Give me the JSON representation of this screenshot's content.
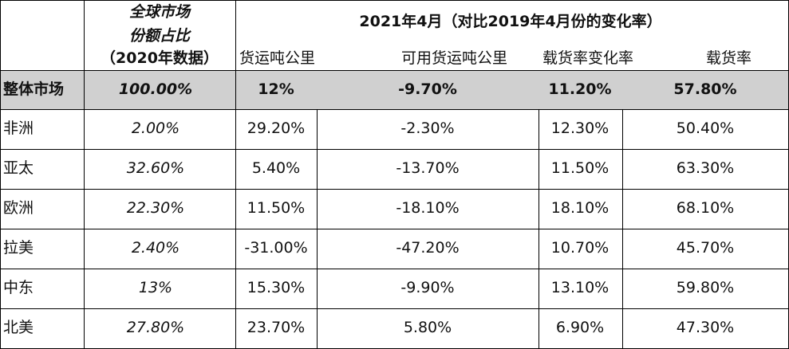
{
  "header": {
    "share": [
      "全球市场",
      "份额占比",
      "（2020年数据）"
    ],
    "title": "2021年4月（对比2019年4月份的变化率）",
    "columns": [
      "货运吨公里",
      "可用货运吨公里",
      "载货率变化率",
      "载货率"
    ]
  },
  "table": {
    "rows": [
      [
        "整体市场",
        "100.00%",
        "12%",
        "-9.70%",
        "11.20%",
        "57.80%"
      ],
      [
        "非洲",
        "2.00%",
        "29.20%",
        "-2.30%",
        "12.30%",
        "50.40%"
      ],
      [
        "亚太",
        "32.60%",
        "5.40%",
        "-13.70%",
        "11.50%",
        "63.30%"
      ],
      [
        "欧洲",
        "22.30%",
        "11.50%",
        "-18.10%",
        "18.10%",
        "68.10%"
      ],
      [
        "拉美",
        "2.40%",
        "-31.00%",
        "-47.20%",
        "10.70%",
        "45.70%"
      ],
      [
        "中东",
        "13%",
        "15.30%",
        "-9.90%",
        "13.10%",
        "59.80%"
      ],
      [
        "北美",
        "27.80%",
        "23.70%",
        "5.80%",
        "6.90%",
        "47.30%"
      ]
    ]
  }
}
